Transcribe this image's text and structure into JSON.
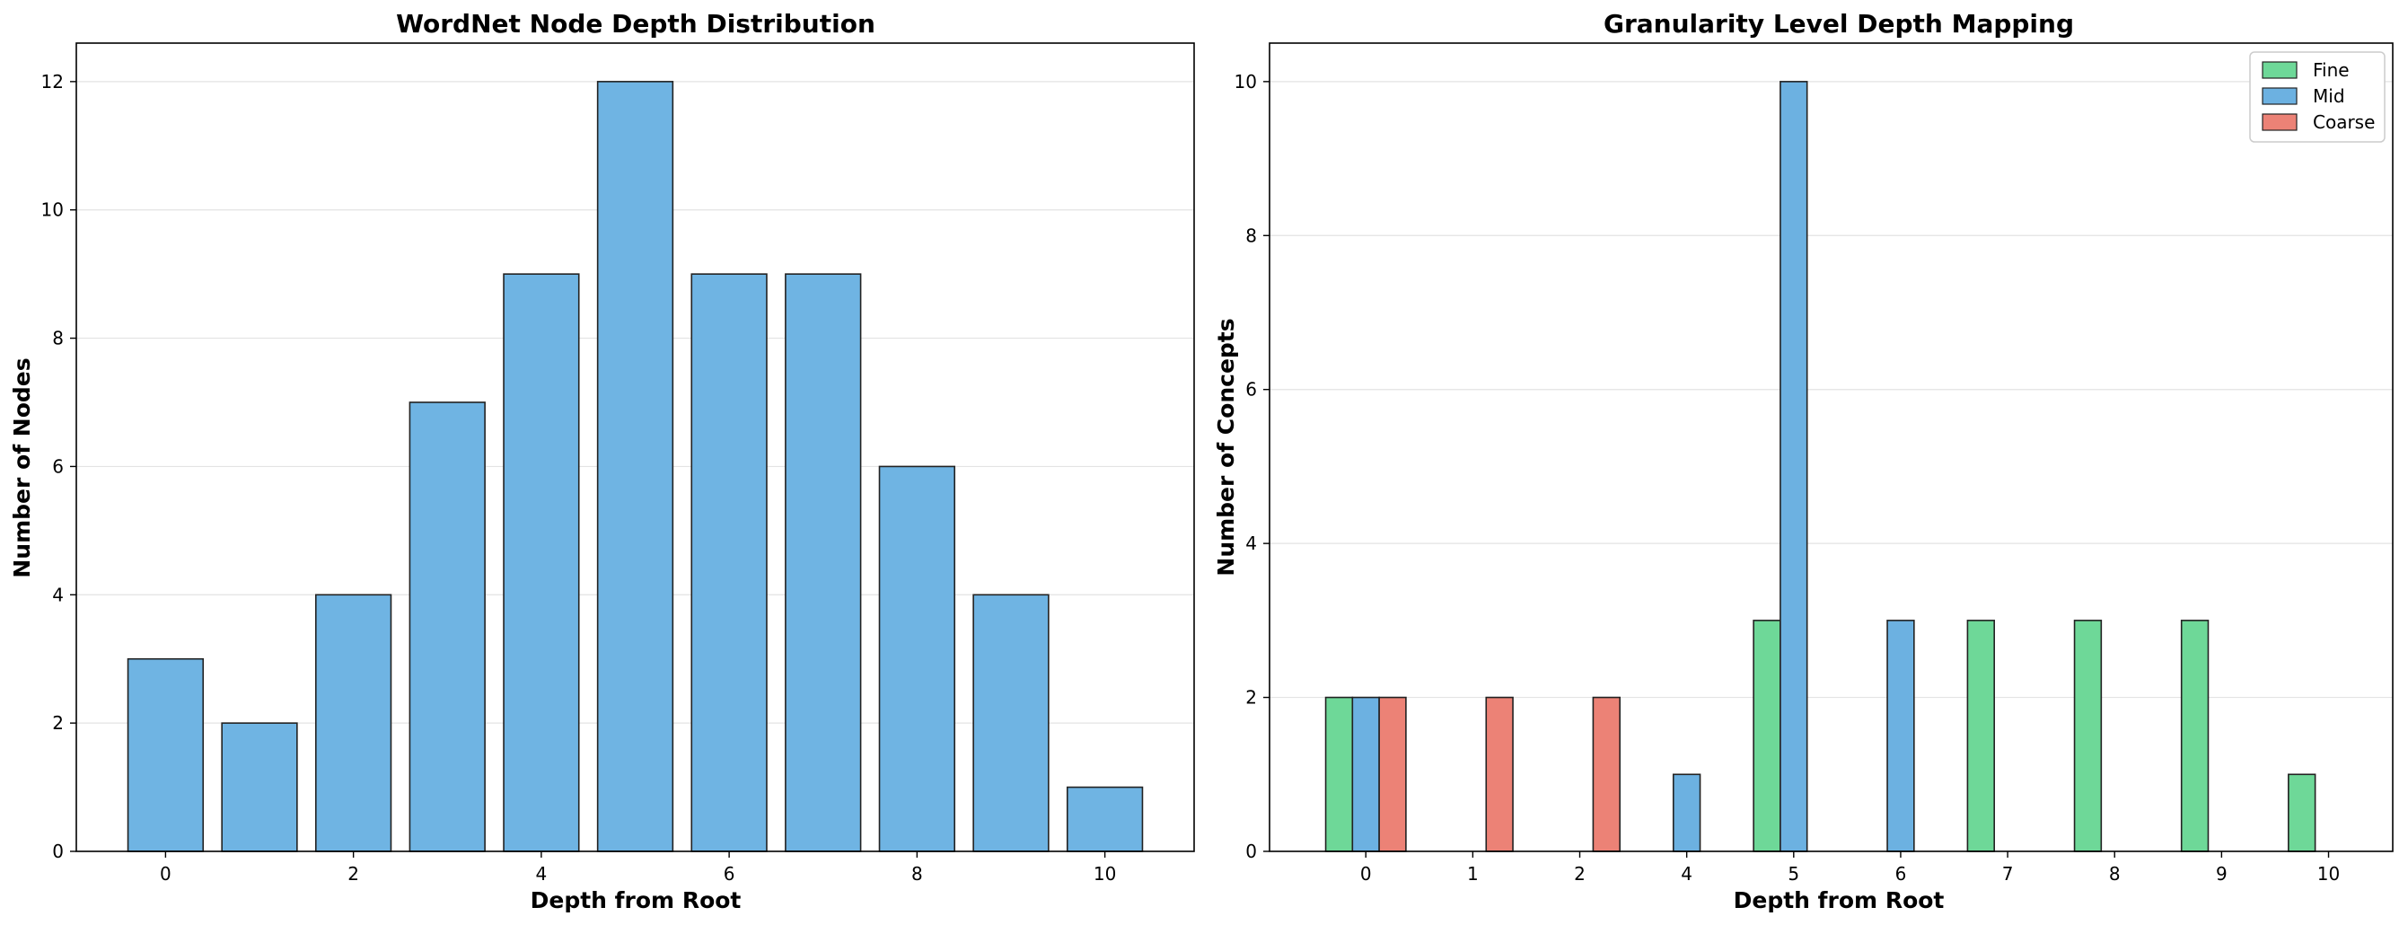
{
  "chart_data": [
    {
      "type": "bar",
      "title": "WordNet Node Depth Distribution",
      "xlabel": "Depth from Root",
      "ylabel": "Number of Nodes",
      "categories": [
        0,
        1,
        2,
        3,
        4,
        5,
        6,
        7,
        8,
        9,
        10
      ],
      "values": [
        3,
        2,
        4,
        7,
        9,
        12,
        9,
        9,
        6,
        4,
        1
      ],
      "xticks": [
        "0",
        "2",
        "4",
        "6",
        "8",
        "10"
      ],
      "yticks": [
        "0",
        "2",
        "4",
        "6",
        "8",
        "10",
        "12"
      ],
      "xlim": [
        -0.95,
        10.95
      ],
      "ylim": [
        0,
        12.6
      ],
      "grid": "y",
      "colors": {
        "bar": "#6fb4e3",
        "edge": "#222222"
      }
    },
    {
      "type": "bar",
      "title": "Granularity Level Depth Mapping",
      "xlabel": "Depth from Root",
      "ylabel": "Number of Concepts",
      "categories": [
        "0",
        "1",
        "2",
        "4",
        "5",
        "6",
        "7",
        "8",
        "9",
        "10"
      ],
      "series": [
        {
          "name": "Fine",
          "values": [
            2,
            0,
            0,
            0,
            3,
            0,
            3,
            3,
            3,
            1
          ],
          "color": "#6ed898"
        },
        {
          "name": "Mid",
          "values": [
            2,
            0,
            0,
            1,
            10,
            3,
            0,
            0,
            0,
            0
          ],
          "color": "#6cb1e1"
        },
        {
          "name": "Coarse",
          "values": [
            2,
            2,
            2,
            0,
            0,
            0,
            0,
            0,
            0,
            0
          ],
          "color": "#ec8276"
        }
      ],
      "yticks": [
        "0",
        "2",
        "4",
        "6",
        "8",
        "10"
      ],
      "ylim": [
        0,
        10.5
      ],
      "grid": "y",
      "legend": "top-right"
    }
  ]
}
